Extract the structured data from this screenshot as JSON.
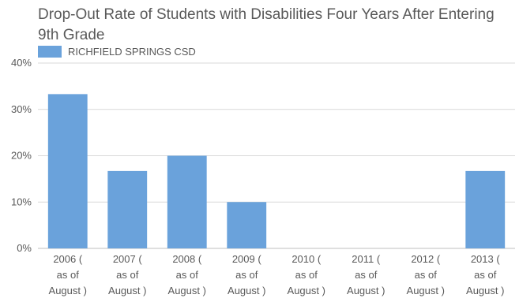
{
  "chart_data": {
    "type": "bar",
    "title": "Drop-Out Rate of Students with Disabilities Four Years After Entering 9th Grade",
    "categories": [
      [
        "2006 (",
        "as of",
        "August )"
      ],
      [
        "2007 (",
        "as of",
        "August )"
      ],
      [
        "2008 (",
        "as of",
        "August )"
      ],
      [
        "2009 (",
        "as of",
        "August )"
      ],
      [
        "2010 (",
        "as of",
        "August )"
      ],
      [
        "2011 (",
        "as of",
        "August )"
      ],
      [
        "2012 (",
        "as of",
        "August )"
      ],
      [
        "2013 (",
        "as of",
        "August )"
      ]
    ],
    "series": [
      {
        "name": "RICHFIELD SPRINGS CSD",
        "values": [
          33.3,
          16.7,
          20.0,
          10.0,
          0,
          0,
          0,
          16.7
        ]
      }
    ],
    "ylim": [
      0,
      40
    ],
    "yticks": [
      "0%",
      "10%",
      "20%",
      "30%",
      "40%"
    ],
    "grid": true,
    "legend": "top-left",
    "colors": {
      "bar": "#6aa2db",
      "grid": "#d9d9d9",
      "axis": "#bfbfbf"
    }
  }
}
